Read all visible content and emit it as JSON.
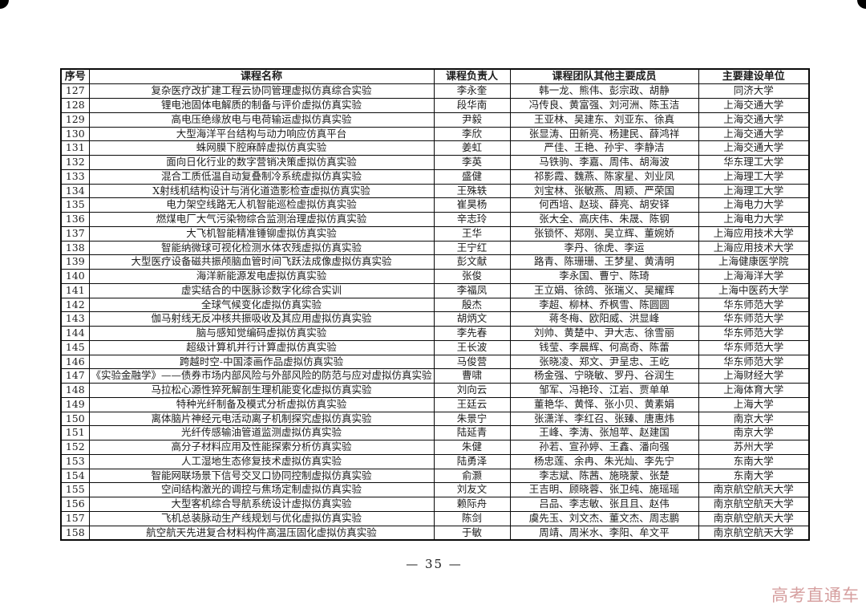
{
  "page": {
    "number_label": "— 35 —",
    "watermark": "高考直通车",
    "watermark_color": "#cf8f8f"
  },
  "table": {
    "headers": [
      "序号",
      "课程名称",
      "课程负责人",
      "课程团队其他主要成员",
      "主要建设单位"
    ],
    "rows": [
      {
        "no": "127",
        "course": "复杂医疗改扩建工程云协同管理虚拟仿真综合实验",
        "leader": "李永奎",
        "team": "韩一龙、熊伟、彭宗政、胡静",
        "unit": "同济大学"
      },
      {
        "no": "128",
        "course": "锂电池固体电解质的制备与评价虚拟仿真实验",
        "leader": "段华南",
        "team": "冯传良、黄富强、刘河洲、陈玉洁",
        "unit": "上海交通大学"
      },
      {
        "no": "129",
        "course": "高电压绝缘放电与电荷输运虚拟仿真实验",
        "leader": "尹毅",
        "team": "王亚林、吴建东、刘亚东、徐真",
        "unit": "上海交通大学"
      },
      {
        "no": "130",
        "course": "大型海洋平台结构与动力响应仿真平台",
        "leader": "李欣",
        "team": "张显涛、田新亮、杨建民、薛鸿祥",
        "unit": "上海交通大学"
      },
      {
        "no": "131",
        "course": "蛛网膜下腔麻醉虚拟仿真实验",
        "leader": "姜虹",
        "team": "严佳、王艳、孙宇、李静洁",
        "unit": "上海交通大学"
      },
      {
        "no": "132",
        "course": "面向日化行业的数字营销决策虚拟仿真实验",
        "leader": "李英",
        "team": "马铁驹、李嘉、周伟、胡海波",
        "unit": "华东理工大学"
      },
      {
        "no": "133",
        "course": "混合工质低温自动复叠制冷系统虚拟仿真实验",
        "leader": "盛健",
        "team": "祁影霞、魏燕、陈家星、刘业凤",
        "unit": "上海理工大学"
      },
      {
        "no": "134",
        "course": "X射线机结构设计与消化道造影检查虚拟仿真实验",
        "leader": "王殊轶",
        "team": "刘宝林、张敏燕、周颖、严荣国",
        "unit": "上海理工大学"
      },
      {
        "no": "135",
        "course": "电力架空线路无人机智能巡检虚拟仿真实验",
        "leader": "崔昊杨",
        "team": "何西培、赵琰、薛亮、胡安铎",
        "unit": "上海电力大学"
      },
      {
        "no": "136",
        "course": "燃煤电厂大气污染物综合监测治理虚拟仿真实验",
        "leader": "辛志玲",
        "team": "张大全、高庆伟、朱晟、陈钢",
        "unit": "上海电力大学"
      },
      {
        "no": "137",
        "course": "大飞机智能精准锤铆虚拟仿真实验",
        "leader": "王华",
        "team": "张锁怀、郑刚、吴立辉、董婉娇",
        "unit": "上海应用技术大学"
      },
      {
        "no": "138",
        "course": "智能纳微球可视化检测水体农残虚拟仿真实验",
        "leader": "王宁红",
        "team": "李丹、徐虎、李运",
        "unit": "上海应用技术大学"
      },
      {
        "no": "139",
        "course": "大型医疗设备磁共振颅脑血管时间飞跃法成像虚拟仿真实验",
        "leader": "彭文献",
        "team": "路青、陈珊珊、王梦星、黄清明",
        "unit": "上海健康医学院"
      },
      {
        "no": "140",
        "course": "海洋新能源发电虚拟仿真实验",
        "leader": "张俊",
        "team": "李永国、曹宁、陈琦",
        "unit": "上海海洋大学"
      },
      {
        "no": "141",
        "course": "虚实结合的中医脉诊数字化综合实训",
        "leader": "李福凤",
        "team": "王立娟、徐鸽、张瑞义、吴耀辉",
        "unit": "上海中医药大学"
      },
      {
        "no": "142",
        "course": "全球气候变化虚拟仿真实验",
        "leader": "殷杰",
        "team": "李超、柳林、乔枫雪、陈圆圆",
        "unit": "华东师范大学"
      },
      {
        "no": "143",
        "course": "伽马射线无反冲核共振吸收及其应用虚拟仿真实验",
        "leader": "胡炳文",
        "team": "蒋冬梅、欧阳威、洪显峰",
        "unit": "华东师范大学"
      },
      {
        "no": "144",
        "course": "脑与感知觉编码虚拟仿真实验",
        "leader": "李先春",
        "team": "刘帅、黄楚中、尹大志、徐雪丽",
        "unit": "华东师范大学"
      },
      {
        "no": "145",
        "course": "超级计算机并行计算虚拟仿真实验",
        "leader": "王长波",
        "team": "钱莹、李晨辉、何高奇、陈蕾",
        "unit": "华东师范大学"
      },
      {
        "no": "146",
        "course": "跨越时空-中国漆画作品虚拟仿真实验",
        "leader": "马俊营",
        "team": "张晓凌、郑文、尹呈忠、王屹",
        "unit": "华东师范大学"
      },
      {
        "no": "147",
        "course": "《实验金融学》——债券市场内部风险与外部风险的防范与应对虚拟仿真实验",
        "leader": "曹啸",
        "team": "杨金强、宁晓敏、罗丹、谷润生",
        "unit": "上海财经大学"
      },
      {
        "no": "148",
        "course": "马拉松心源性猝死解剖生理机能变化虚拟仿真实验",
        "leader": "刘向云",
        "team": "邹军、冯艳玲、江岩、贾单单",
        "unit": "上海体育大学"
      },
      {
        "no": "149",
        "course": "特种光纤制备及模式分析虚拟仿真实验",
        "leader": "王廷云",
        "team": "董艳华、黄怿、张小贝、黄素娟",
        "unit": "上海大学"
      },
      {
        "no": "150",
        "course": "离体脑片神经元电活动离子机制探究虚拟仿真实验",
        "leader": "朱景宁",
        "team": "张潇洋、李红召、张臻、唐惠炜",
        "unit": "南京大学"
      },
      {
        "no": "151",
        "course": "光纤传感输油管道监测虚拟仿真实验",
        "leader": "陆延青",
        "team": "王峰、李涛、张旭苹、赵建国",
        "unit": "南京大学"
      },
      {
        "no": "152",
        "course": "高分子材料应用及性能探索分析仿真实验",
        "leader": "朱健",
        "team": "孙若、宣孙婷、王鑫、潘向强",
        "unit": "苏州大学"
      },
      {
        "no": "153",
        "course": "人工湿地生态修复技术虚拟仿真实验",
        "leader": "陆勇泽",
        "team": "杨忠莲、余冉、朱光灿、李先宁",
        "unit": "东南大学"
      },
      {
        "no": "154",
        "course": "智能网联场景下信号交叉口协同控制虚拟仿真实验",
        "leader": "俞灏",
        "team": "李志斌、陈茜、施晓蒙、张楚",
        "unit": "东南大学"
      },
      {
        "no": "155",
        "course": "空间结构激光的调控与焦场定制虚拟仿真实验",
        "leader": "刘友文",
        "team": "王吉明、顾晓蓉、张卫纯、施瑶瑶",
        "unit": "南京航空航天大学"
      },
      {
        "no": "156",
        "course": "大型客机综合导航系统设计虚拟仿真实验",
        "leader": "赖际舟",
        "team": "吕品、李志敏、张且且、赵伟",
        "unit": "南京航空航天大学"
      },
      {
        "no": "157",
        "course": "飞机总装脉动生产线规划与优化虚拟仿真实验",
        "leader": "陈剑",
        "team": "虞先玉、刘文杰、董文杰、周志鹏",
        "unit": "南京航空航天大学"
      },
      {
        "no": "158",
        "course": "航空航天先进复合材料构件高温压固化虚拟仿真实验",
        "leader": "于敏",
        "team": "周靖、周米水、李阳、牟文平",
        "unit": "南京航空航天大学"
      }
    ]
  }
}
